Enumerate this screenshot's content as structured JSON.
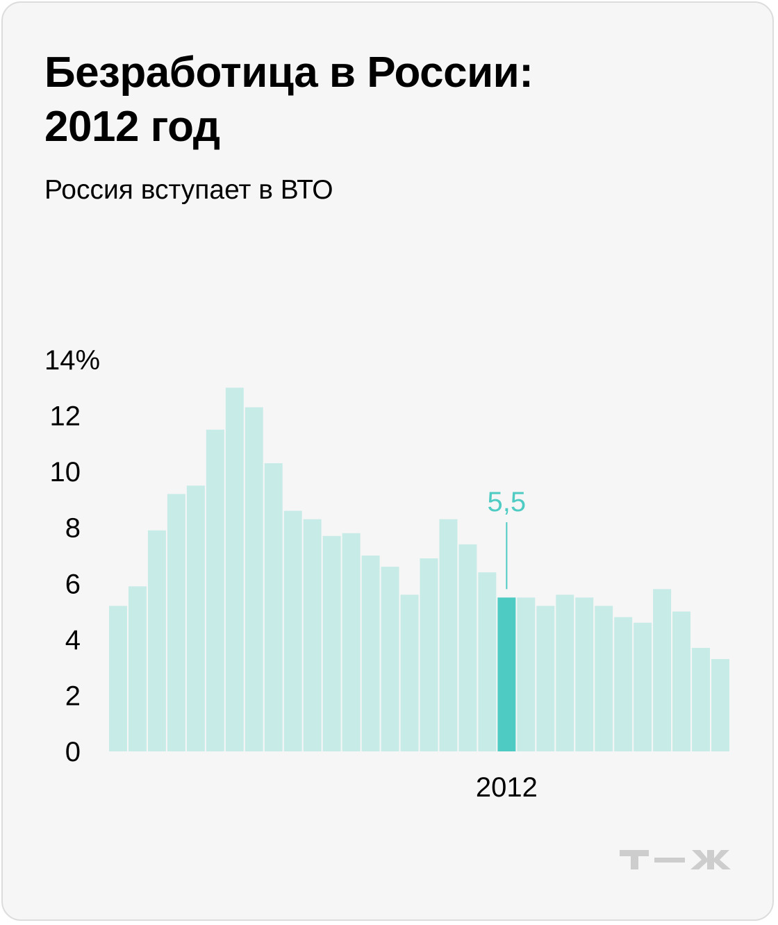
{
  "header": {
    "title_line1": "Безработица в России:",
    "title_line2": "2012 год",
    "subtitle": "Россия вступает в ВТО"
  },
  "logo": {
    "text": "т—ж",
    "color": "#c9c9c9"
  },
  "colors": {
    "bar": "#c7ebe7",
    "highlight": "#4ecbc3",
    "text": "#000000"
  },
  "chart_data": {
    "type": "bar",
    "title": "Безработица в России: 2012 год",
    "subtitle": "Россия вступает в ВТО",
    "xlabel": "",
    "ylabel": "",
    "ylim": [
      0,
      14
    ],
    "y_ticks": [
      "0",
      "2",
      "4",
      "6",
      "8",
      "10",
      "12",
      "14%"
    ],
    "x_tick_labels": [
      {
        "index": 20,
        "label": "2012"
      }
    ],
    "highlight_index": 20,
    "highlight_label": "5,5",
    "grid": false,
    "values": [
      5.2,
      5.9,
      7.9,
      9.2,
      9.5,
      11.5,
      13.0,
      12.3,
      10.3,
      8.6,
      8.3,
      7.7,
      7.8,
      7.0,
      6.6,
      5.6,
      6.9,
      8.3,
      7.4,
      6.4,
      5.5,
      5.5,
      5.2,
      5.6,
      5.5,
      5.2,
      4.8,
      4.6,
      5.8,
      5.0,
      3.7,
      3.3
    ]
  }
}
